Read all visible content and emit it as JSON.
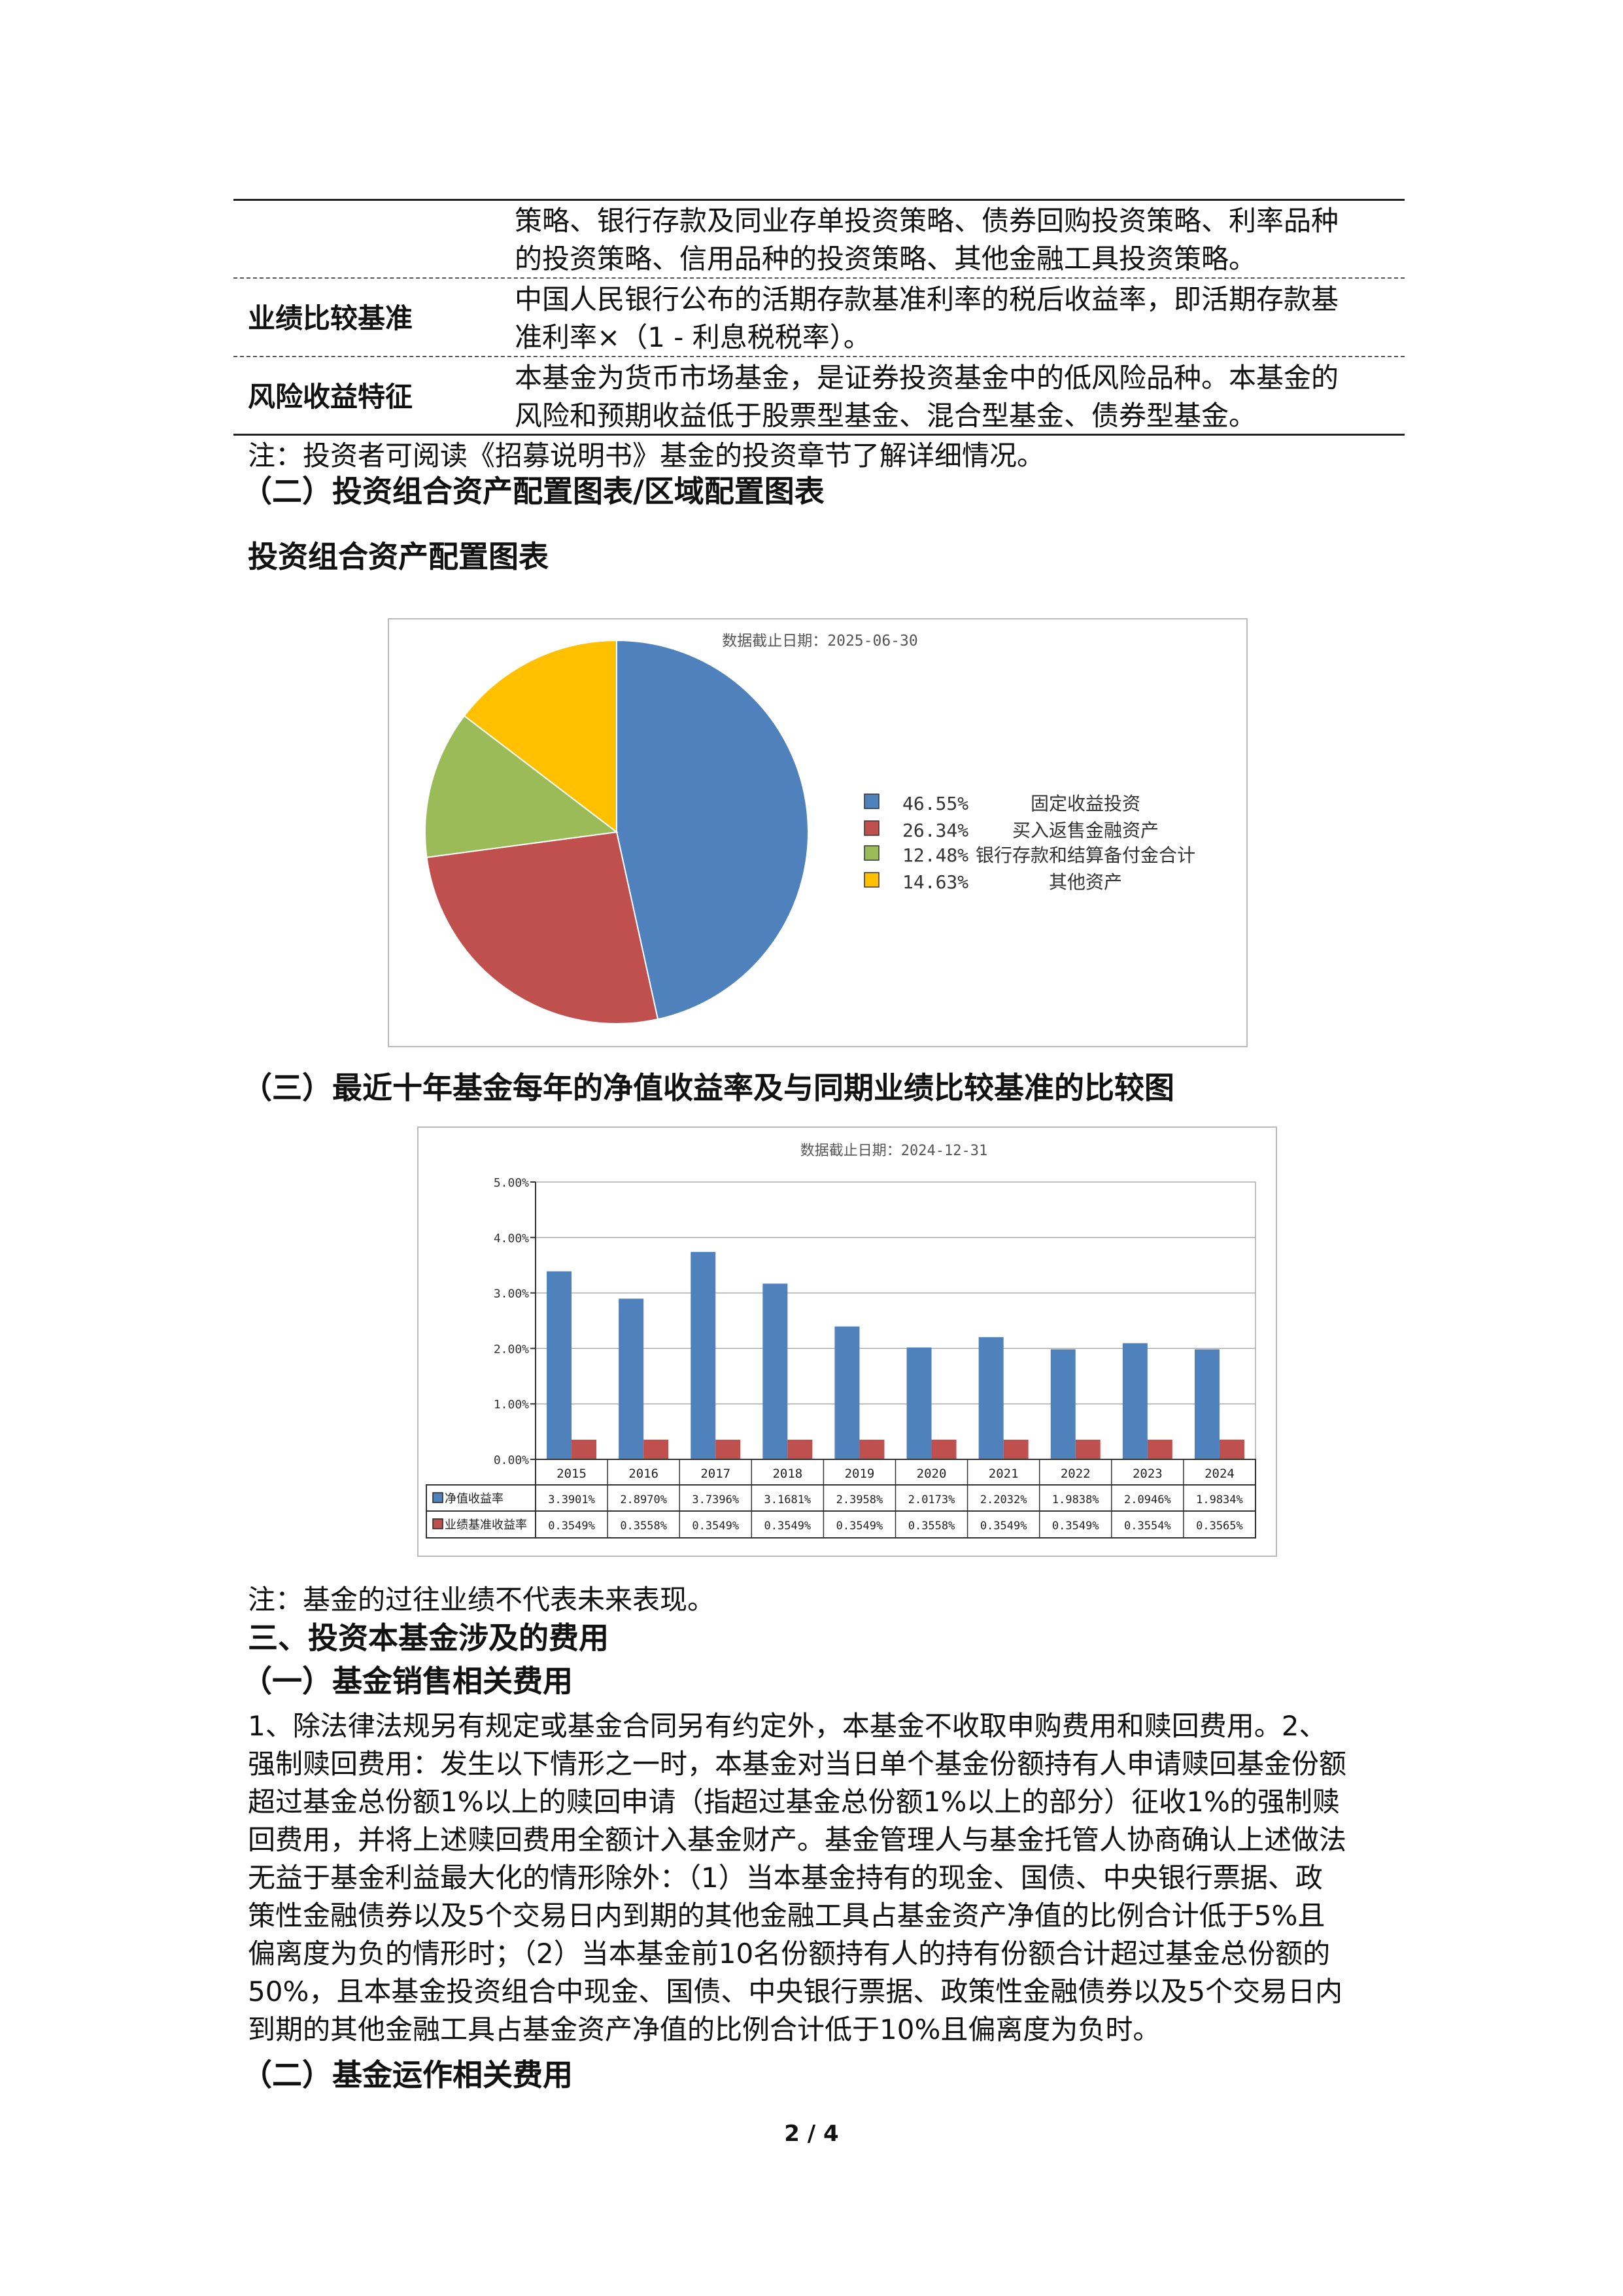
{
  "info_table": {
    "rows": [
      {
        "label": "",
        "lines": [
          "策略、银行存款及同业存单投资策略、债券回购投资策略、利率品种",
          "的投资策略、信用品种的投资策略、其他金融工具投资策略。"
        ]
      },
      {
        "label": "业绩比较基准",
        "lines": [
          "中国人民银行公布的活期存款基准利率的税后收益率，即活期存款基",
          "准利率×（1 - 利息税税率）。"
        ]
      },
      {
        "label": "风险收益特征",
        "lines": [
          "本基金为货币市场基金，是证券投资基金中的低风险品种。本基金的",
          "风险和预期收益低于股票型基金、混合型基金、债券型基金。"
        ]
      }
    ],
    "note": "注：投资者可阅读《招募说明书》基金的投资章节了解详细情况。"
  },
  "section2_heading": "（二）投资组合资产配置图表/区域配置图表",
  "pie_heading": "投资组合资产配置图表",
  "section3_heading": "（三）最近十年基金每年的净值收益率及与同期业绩比较基准的比较图",
  "chart_data": [
    {
      "type": "pie",
      "title": "数据截止日期：2025-06-30",
      "labels": [
        "固定收益投资",
        "买入返售金融资产",
        "银行存款和结算备付金合计",
        "其他资产"
      ],
      "pct_labels": [
        "46.55%",
        "26.34%",
        "12.48%",
        "14.63%"
      ],
      "values": [
        46.55,
        26.34,
        12.48,
        14.63
      ],
      "colors": [
        "#4F81BD",
        "#C0504D",
        "#9BBB59",
        "#FFC000"
      ],
      "legend": "right"
    },
    {
      "type": "bar",
      "title": "数据截止日期：2024-12-31",
      "categories": [
        "2015",
        "2016",
        "2017",
        "2018",
        "2019",
        "2020",
        "2021",
        "2022",
        "2023",
        "2024"
      ],
      "series": [
        {
          "name": "净值收益率",
          "color": "#4F81BD",
          "values": [
            3.3901,
            2.897,
            3.7396,
            3.1681,
            2.3958,
            2.0173,
            2.2032,
            1.9838,
            2.0946,
            1.9834
          ],
          "labels": [
            "3.3901%",
            "2.8970%",
            "3.7396%",
            "3.1681%",
            "2.3958%",
            "2.0173%",
            "2.2032%",
            "1.9838%",
            "2.0946%",
            "1.9834%"
          ]
        },
        {
          "name": "业绩基准收益率",
          "color": "#C0504D",
          "values": [
            0.3549,
            0.3558,
            0.3549,
            0.3549,
            0.3549,
            0.3558,
            0.3549,
            0.3549,
            0.3554,
            0.3565
          ],
          "labels": [
            "0.3549%",
            "0.3558%",
            "0.3549%",
            "0.3549%",
            "0.3549%",
            "0.3558%",
            "0.3549%",
            "0.3549%",
            "0.3554%",
            "0.3565%"
          ]
        }
      ],
      "yticks": [
        "0.00%",
        "1.00%",
        "2.00%",
        "3.00%",
        "4.00%",
        "5.00%"
      ],
      "ylim": [
        0,
        5
      ],
      "grid": true,
      "legend": "data-table"
    }
  ],
  "chart_note": "注：基金的过往业绩不代表未来表现。",
  "fees_heading": "三、投资本基金涉及的费用",
  "fees_sub1": "（一）基金销售相关费用",
  "fees_para": [
    "1、除法律法规另有规定或基金合同另有约定外，本基金不收取申购费用和赎回费用。2、",
    "强制赎回费用：发生以下情形之一时，本基金对当日单个基金份额持有人申请赎回基金份额",
    "超过基金总份额1%以上的赎回申请（指超过基金总份额1%以上的部分）征收1%的强制赎",
    "回费用，并将上述赎回费用全额计入基金财产。基金管理人与基金托管人协商确认上述做法",
    "无益于基金利益最大化的情形除外：（1）当本基金持有的现金、国债、中央银行票据、政",
    "策性金融债券以及5个交易日内到期的其他金融工具占基金资产净值的比例合计低于5%且",
    "偏离度为负的情形时；（2）当本基金前10名份额持有人的持有份额合计超过基金总份额的",
    "50%，且本基金投资组合中现金、国债、中央银行票据、政策性金融债券以及5个交易日内",
    "到期的其他金融工具占基金资产净值的比例合计低于10%且偏离度为负时。"
  ],
  "fees_sub2": "（二）基金运作相关费用",
  "page_number": "2 / 4"
}
